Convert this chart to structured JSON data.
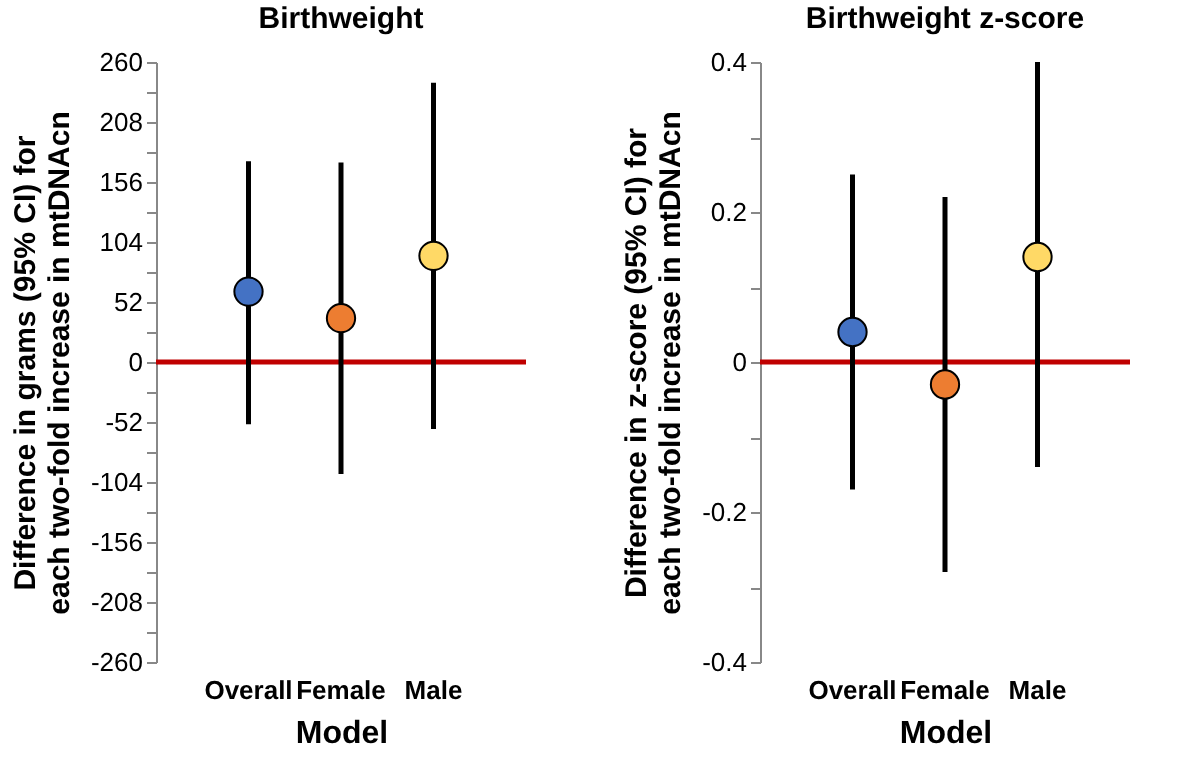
{
  "chart_data": [
    {
      "type": "scatter",
      "title": "Birthweight",
      "xlabel": "Model",
      "ylabel": "Difference in grams (95% CI) for each two-fold increase in mtDNAcn",
      "categories": [
        "Overall",
        "Female",
        "Male"
      ],
      "values": [
        61,
        38,
        92
      ],
      "errors": [
        [
          -54,
          174
        ],
        [
          -97,
          173
        ],
        [
          -58,
          242
        ]
      ],
      "colors": [
        "#4472c4",
        "#ed7d31",
        "#ffd966"
      ],
      "marker": "circle",
      "ylim": [
        -260,
        260
      ],
      "yticks": [
        -260,
        {
          "value": -234,
          "label": null
        },
        -208,
        {
          "value": -182,
          "label": null
        },
        -156,
        {
          "value": -130,
          "label": null
        },
        -104,
        {
          "value": -78,
          "label": null
        },
        -52,
        {
          "value": -26,
          "label": null
        },
        0,
        {
          "value": 26,
          "label": null
        },
        52,
        {
          "value": 78,
          "label": null
        },
        104,
        {
          "value": 130,
          "label": null
        },
        156,
        {
          "value": 182,
          "label": null
        },
        208,
        {
          "value": 234,
          "label": null
        },
        260
      ],
      "ref_lines": [
        {
          "axis": "y",
          "value": 0,
          "color": "#c00000"
        }
      ],
      "grid": false
    },
    {
      "type": "scatter",
      "title": "Birthweight z-score",
      "xlabel": "Model",
      "ylabel": "Difference in z-score (95% CI) for each two-fold increase in mtDNAcn",
      "categories": [
        "Overall",
        "Female",
        "Male"
      ],
      "values": [
        0.04,
        -0.03,
        0.14
      ],
      "errors": [
        [
          -0.17,
          0.25
        ],
        [
          -0.28,
          0.22
        ],
        [
          -0.14,
          0.4
        ]
      ],
      "colors": [
        "#4472c4",
        "#ed7d31",
        "#ffd966"
      ],
      "marker": "circle",
      "ylim": [
        -0.4,
        0.4
      ],
      "yticks": [
        -0.4,
        {
          "value": -0.3,
          "label": null
        },
        -0.2,
        {
          "value": -0.1,
          "label": null
        },
        0,
        {
          "value": 0.1,
          "label": null
        },
        0.2,
        {
          "value": 0.3,
          "label": null
        },
        0.4
      ],
      "ref_lines": [
        {
          "axis": "y",
          "value": 0,
          "color": "#c00000"
        }
      ],
      "grid": false
    }
  ]
}
